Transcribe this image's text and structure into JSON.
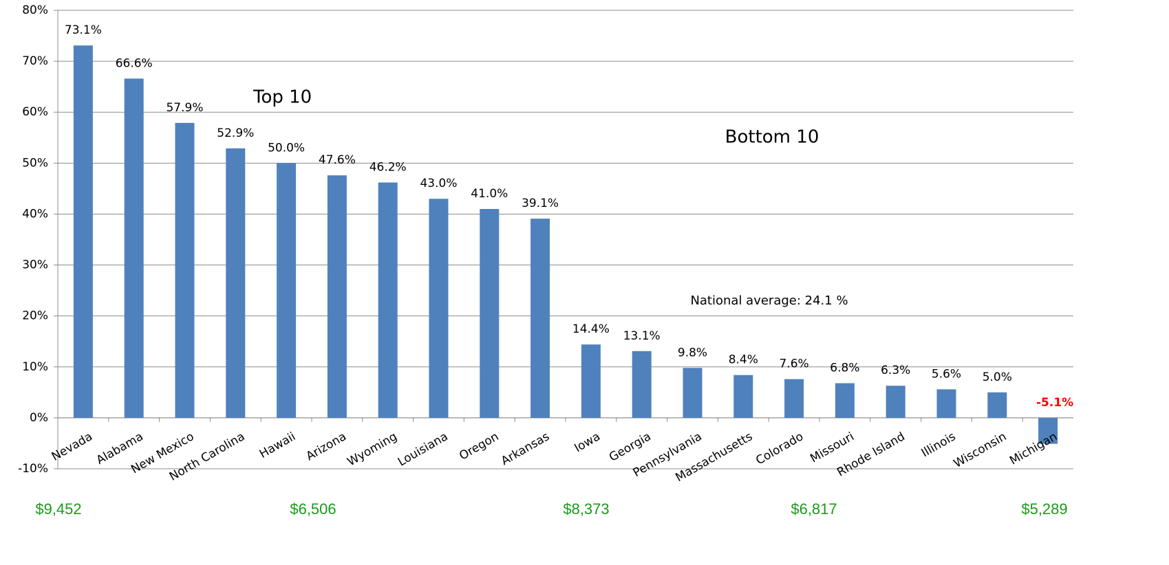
{
  "chart_data": {
    "type": "bar",
    "categories": [
      "Nevada",
      "Alabama",
      "New Mexico",
      "North Carolina",
      "Hawaii",
      "Arizona",
      "Wyoming",
      "Louisiana",
      "Oregon",
      "Arkansas",
      "Iowa",
      "Georgia",
      "Pennsylvania",
      "Massachusetts",
      "Colorado",
      "Missouri",
      "Rhode Island",
      "Illinois",
      "Wisconsin",
      "Michigan"
    ],
    "values": [
      73.1,
      66.6,
      57.9,
      52.9,
      50.0,
      47.6,
      46.2,
      43.0,
      41.0,
      39.1,
      14.4,
      13.1,
      9.8,
      8.4,
      7.6,
      6.8,
      6.3,
      5.6,
      5.0,
      -5.1
    ],
    "value_labels": [
      "73.1%",
      "66.6%",
      "57.9%",
      "52.9%",
      "50.0%",
      "47.6%",
      "46.2%",
      "43.0%",
      "41.0%",
      "39.1%",
      "14.4%",
      "13.1%",
      "9.8%",
      "8.4%",
      "7.6%",
      "6.8%",
      "6.3%",
      "5.6%",
      "5.0%",
      "-5.1%"
    ],
    "color": "#4f81bd",
    "negative_label_color": "#ff0000",
    "ylim": [
      -10,
      80
    ],
    "yticks": [
      {
        "value": -10,
        "label": "-10%"
      },
      {
        "value": 0,
        "label": "0%"
      },
      {
        "value": 10,
        "label": "10%"
      },
      {
        "value": 20,
        "label": "20%"
      },
      {
        "value": 30,
        "label": "30%"
      },
      {
        "value": 40,
        "label": "40%"
      },
      {
        "value": 50,
        "label": "50%"
      },
      {
        "value": 60,
        "label": "60%"
      },
      {
        "value": 70,
        "label": "70%"
      },
      {
        "value": 80,
        "label": "80%"
      }
    ],
    "grid": true,
    "annotations": [
      "Top 10",
      "Bottom 10",
      "National average: 24.1 %"
    ],
    "dollar_labels": [
      "$9,452",
      "$6,506",
      "$8,373",
      "$6,817",
      "$5,289"
    ],
    "dollar_label_color": "#1a9a1a"
  }
}
